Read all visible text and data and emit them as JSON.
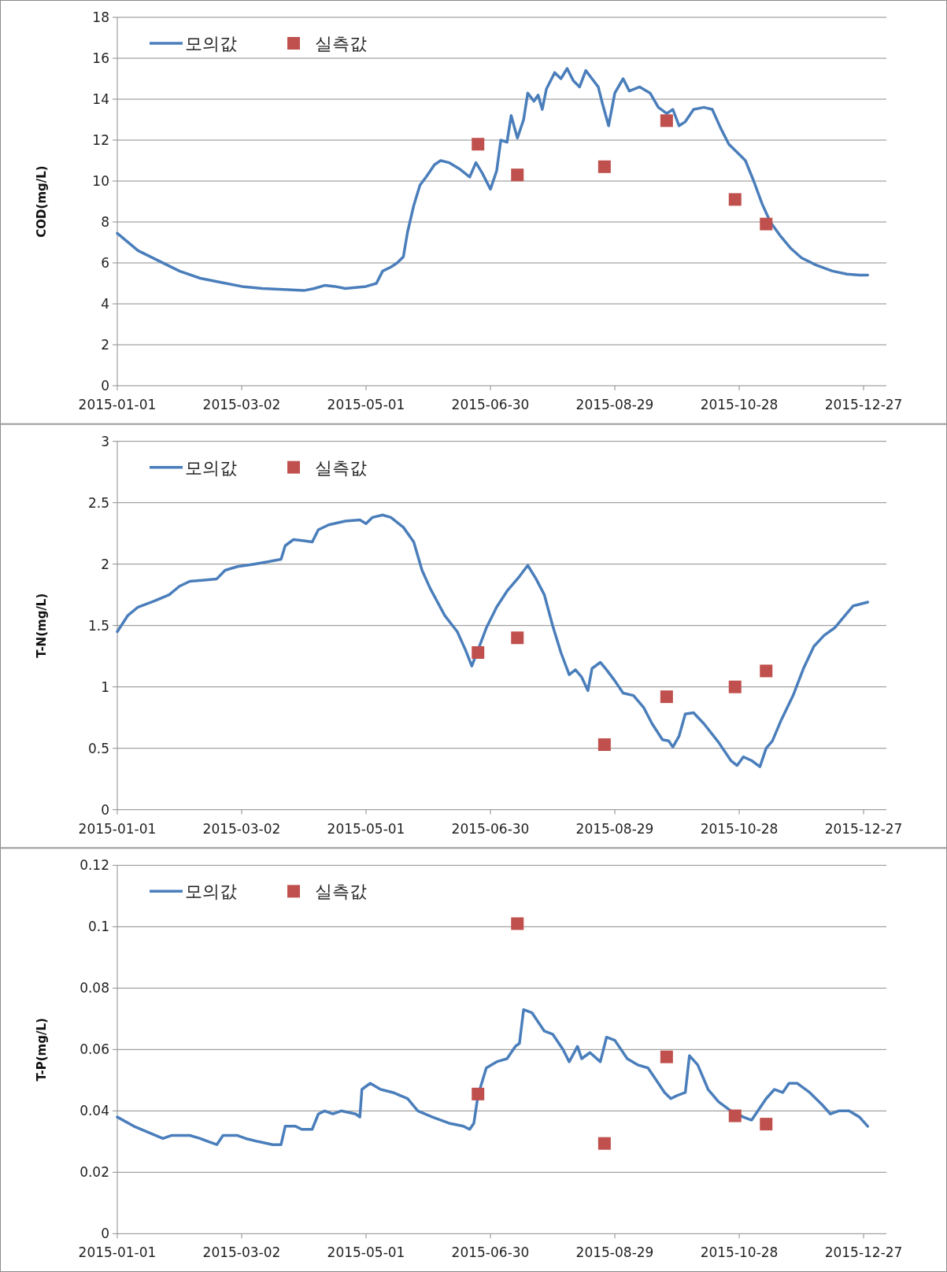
{
  "chart_data": [
    {
      "type": "line",
      "ylabel": "COD(mg/L)",
      "xlim": [
        "2015-01-01",
        "2016-01-07"
      ],
      "xticks": [
        "2015-01-01",
        "2015-03-02",
        "2015-05-01",
        "2015-06-30",
        "2015-08-29",
        "2015-10-28",
        "2015-12-27"
      ],
      "ylim": [
        0,
        18
      ],
      "yticks": [
        0,
        2,
        4,
        6,
        8,
        10,
        12,
        14,
        16,
        18
      ],
      "grid": "y",
      "legend": "top left",
      "series": [
        {
          "name": "모의값",
          "type": "line",
          "color": "#4a7ebb",
          "marker": "none",
          "x": [
            "2015-01-01",
            "2015-01-11",
            "2015-01-21",
            "2015-01-31",
            "2015-02-10",
            "2015-02-20",
            "2015-03-02",
            "2015-03-12",
            "2015-03-22",
            "2015-04-01",
            "2015-04-06",
            "2015-04-11",
            "2015-04-16",
            "2015-04-21",
            "2015-04-26",
            "2015-05-01",
            "2015-05-06",
            "2015-05-09",
            "2015-05-13",
            "2015-05-16",
            "2015-05-19",
            "2015-05-21",
            "2015-05-24",
            "2015-05-27",
            "2015-05-30",
            "2015-06-03",
            "2015-06-06",
            "2015-06-10",
            "2015-06-15",
            "2015-06-20",
            "2015-06-23",
            "2015-06-26",
            "2015-06-30",
            "2015-07-03",
            "2015-07-05",
            "2015-07-08",
            "2015-07-10",
            "2015-07-13",
            "2015-07-16",
            "2015-07-18",
            "2015-07-21",
            "2015-07-23",
            "2015-07-25",
            "2015-07-27",
            "2015-07-31",
            "2015-08-03",
            "2015-08-06",
            "2015-08-09",
            "2015-08-12",
            "2015-08-15",
            "2015-08-18",
            "2015-08-21",
            "2015-08-23",
            "2015-08-26",
            "2015-08-29",
            "2015-09-02",
            "2015-09-05",
            "2015-09-10",
            "2015-09-15",
            "2015-09-19",
            "2015-09-23",
            "2015-09-26",
            "2015-09-29",
            "2015-10-02",
            "2015-10-06",
            "2015-10-11",
            "2015-10-15",
            "2015-10-19",
            "2015-10-23",
            "2015-10-27",
            "2015-10-31",
            "2015-11-04",
            "2015-11-08",
            "2015-11-12",
            "2015-11-17",
            "2015-11-22",
            "2015-11-27",
            "2015-12-04",
            "2015-12-12",
            "2015-12-19",
            "2015-12-25",
            "2015-12-29"
          ],
          "values": [
            7.45,
            6.6,
            6.1,
            5.6,
            5.25,
            5.05,
            4.85,
            4.75,
            4.7,
            4.65,
            4.75,
            4.9,
            4.85,
            4.75,
            4.8,
            4.85,
            5.0,
            5.6,
            5.8,
            6.0,
            6.3,
            7.5,
            8.8,
            9.8,
            10.2,
            10.8,
            11.0,
            10.9,
            10.6,
            10.2,
            10.9,
            10.4,
            9.6,
            10.5,
            12.0,
            11.9,
            13.2,
            12.1,
            13.0,
            14.3,
            13.9,
            14.2,
            13.5,
            14.5,
            15.3,
            15.0,
            15.5,
            14.9,
            14.6,
            15.4,
            15.0,
            14.6,
            13.8,
            12.7,
            14.3,
            15.0,
            14.4,
            14.6,
            14.3,
            13.6,
            13.3,
            13.5,
            12.7,
            12.9,
            13.5,
            13.6,
            13.5,
            12.6,
            11.8,
            11.4,
            11.0,
            10.0,
            8.9,
            8.0,
            7.3,
            6.7,
            6.25,
            5.9,
            5.6,
            5.45,
            5.4,
            5.4
          ]
        },
        {
          "name": "실측값",
          "type": "scatter",
          "color": "#c0504d",
          "marker": "square",
          "x": [
            "2015-06-24",
            "2015-07-13",
            "2015-08-24",
            "2015-09-23",
            "2015-10-26",
            "2015-11-10"
          ],
          "values": [
            11.8,
            10.3,
            10.7,
            12.95,
            9.1,
            7.9
          ]
        }
      ]
    },
    {
      "type": "line",
      "ylabel": "T-N(mg/L)",
      "xlim": [
        "2015-01-01",
        "2016-01-07"
      ],
      "xticks": [
        "2015-01-01",
        "2015-03-02",
        "2015-05-01",
        "2015-06-30",
        "2015-08-29",
        "2015-10-28",
        "2015-12-27"
      ],
      "ylim": [
        0,
        3
      ],
      "yticks": [
        0,
        0.5,
        1,
        1.5,
        2,
        2.5,
        3
      ],
      "grid": "y",
      "legend": "top left",
      "series": [
        {
          "name": "모의값",
          "type": "line",
          "color": "#4a7ebb",
          "marker": "none",
          "x": [
            "2015-01-01",
            "2015-01-06",
            "2015-01-11",
            "2015-01-19",
            "2015-01-26",
            "2015-01-31",
            "2015-02-05",
            "2015-02-12",
            "2015-02-18",
            "2015-02-22",
            "2015-02-28",
            "2015-03-08",
            "2015-03-15",
            "2015-03-21",
            "2015-03-23",
            "2015-03-27",
            "2015-04-01",
            "2015-04-05",
            "2015-04-08",
            "2015-04-13",
            "2015-04-21",
            "2015-04-28",
            "2015-05-01",
            "2015-05-04",
            "2015-05-09",
            "2015-05-13",
            "2015-05-19",
            "2015-05-24",
            "2015-05-28",
            "2015-06-01",
            "2015-06-08",
            "2015-06-14",
            "2015-06-18",
            "2015-06-21",
            "2015-06-24",
            "2015-06-28",
            "2015-07-03",
            "2015-07-08",
            "2015-07-11",
            "2015-07-14",
            "2015-07-18",
            "2015-07-22",
            "2015-07-26",
            "2015-07-30",
            "2015-08-03",
            "2015-08-07",
            "2015-08-10",
            "2015-08-13",
            "2015-08-16",
            "2015-08-18",
            "2015-08-22",
            "2015-08-25",
            "2015-08-29",
            "2015-09-02",
            "2015-09-07",
            "2015-09-12",
            "2015-09-16",
            "2015-09-21",
            "2015-09-24",
            "2015-09-26",
            "2015-09-29",
            "2015-10-02",
            "2015-10-06",
            "2015-10-11",
            "2015-10-18",
            "2015-10-24",
            "2015-10-27",
            "2015-10-30",
            "2015-11-03",
            "2015-11-07",
            "2015-11-10",
            "2015-11-13",
            "2015-11-17",
            "2015-11-23",
            "2015-11-28",
            "2015-12-03",
            "2015-12-08",
            "2015-12-13",
            "2015-12-18",
            "2015-12-22",
            "2015-12-29"
          ],
          "values": [
            1.45,
            1.58,
            1.65,
            1.7,
            1.75,
            1.82,
            1.86,
            1.87,
            1.88,
            1.95,
            1.98,
            2.0,
            2.02,
            2.04,
            2.15,
            2.2,
            2.19,
            2.18,
            2.28,
            2.32,
            2.35,
            2.36,
            2.33,
            2.38,
            2.4,
            2.38,
            2.3,
            2.18,
            1.95,
            1.8,
            1.58,
            1.45,
            1.3,
            1.17,
            1.3,
            1.48,
            1.65,
            1.78,
            1.84,
            1.9,
            1.99,
            1.88,
            1.75,
            1.5,
            1.28,
            1.1,
            1.14,
            1.08,
            0.97,
            1.15,
            1.2,
            1.14,
            1.05,
            0.95,
            0.93,
            0.83,
            0.7,
            0.57,
            0.56,
            0.51,
            0.6,
            0.78,
            0.79,
            0.7,
            0.55,
            0.4,
            0.36,
            0.43,
            0.4,
            0.35,
            0.5,
            0.56,
            0.72,
            0.93,
            1.15,
            1.33,
            1.42,
            1.48,
            1.58,
            1.66,
            1.69
          ]
        },
        {
          "name": "실측값",
          "type": "scatter",
          "color": "#c0504d",
          "marker": "square",
          "x": [
            "2015-06-24",
            "2015-07-13",
            "2015-08-24",
            "2015-09-23",
            "2015-10-26",
            "2015-11-10"
          ],
          "values": [
            1.28,
            1.4,
            0.53,
            0.92,
            1.0,
            1.13
          ]
        }
      ]
    },
    {
      "type": "line",
      "ylabel": "T-P(mg/L)",
      "xlim": [
        "2015-01-01",
        "2016-01-07"
      ],
      "xticks": [
        "2015-01-01",
        "2015-03-02",
        "2015-05-01",
        "2015-06-30",
        "2015-08-29",
        "2015-10-28",
        "2015-12-27"
      ],
      "ylim": [
        0,
        0.12
      ],
      "yticks": [
        0,
        0.02,
        0.04,
        0.06,
        0.08,
        0.1,
        0.12
      ],
      "grid": "y",
      "legend": "top left",
      "series": [
        {
          "name": "모의값",
          "type": "line",
          "color": "#4a7ebb",
          "marker": "none",
          "x": [
            "2015-01-01",
            "2015-01-09",
            "2015-01-16",
            "2015-01-23",
            "2015-01-27",
            "2015-02-05",
            "2015-02-10",
            "2015-02-14",
            "2015-02-18",
            "2015-02-21",
            "2015-02-28",
            "2015-03-04",
            "2015-03-10",
            "2015-03-17",
            "2015-03-21",
            "2015-03-23",
            "2015-03-28",
            "2015-03-31",
            "2015-04-05",
            "2015-04-08",
            "2015-04-11",
            "2015-04-15",
            "2015-04-19",
            "2015-04-26",
            "2015-04-28",
            "2015-04-29",
            "2015-05-03",
            "2015-05-08",
            "2015-05-14",
            "2015-05-21",
            "2015-05-26",
            "2015-06-02",
            "2015-06-10",
            "2015-06-17",
            "2015-06-20",
            "2015-06-22",
            "2015-06-24",
            "2015-06-28",
            "2015-07-03",
            "2015-07-08",
            "2015-07-12",
            "2015-07-14",
            "2015-07-16",
            "2015-07-20",
            "2015-07-26",
            "2015-07-30",
            "2015-08-04",
            "2015-08-07",
            "2015-08-11",
            "2015-08-13",
            "2015-08-17",
            "2015-08-22",
            "2015-08-25",
            "2015-08-29",
            "2015-09-04",
            "2015-09-09",
            "2015-09-14",
            "2015-09-18",
            "2015-09-22",
            "2015-09-25",
            "2015-09-28",
            "2015-10-02",
            "2015-10-04",
            "2015-10-08",
            "2015-10-13",
            "2015-10-18",
            "2015-10-24",
            "2015-10-30",
            "2015-11-03",
            "2015-11-06",
            "2015-11-10",
            "2015-11-14",
            "2015-11-18",
            "2015-11-21",
            "2015-11-25",
            "2015-12-01",
            "2015-12-07",
            "2015-12-11",
            "2015-12-15",
            "2015-12-20",
            "2015-12-25",
            "2015-12-29"
          ],
          "values": [
            0.038,
            0.035,
            0.033,
            0.031,
            0.032,
            0.032,
            0.031,
            0.03,
            0.029,
            0.032,
            0.032,
            0.031,
            0.03,
            0.029,
            0.029,
            0.035,
            0.035,
            0.034,
            0.034,
            0.039,
            0.04,
            0.039,
            0.04,
            0.039,
            0.038,
            0.047,
            0.049,
            0.047,
            0.046,
            0.044,
            0.04,
            0.038,
            0.036,
            0.035,
            0.034,
            0.036,
            0.045,
            0.054,
            0.056,
            0.057,
            0.061,
            0.062,
            0.073,
            0.072,
            0.066,
            0.065,
            0.06,
            0.056,
            0.061,
            0.057,
            0.059,
            0.056,
            0.064,
            0.063,
            0.057,
            0.055,
            0.054,
            0.05,
            0.046,
            0.044,
            0.045,
            0.046,
            0.058,
            0.055,
            0.047,
            0.043,
            0.04,
            0.038,
            0.037,
            0.04,
            0.044,
            0.047,
            0.046,
            0.049,
            0.049,
            0.046,
            0.042,
            0.039,
            0.04,
            0.04,
            0.038,
            0.035
          ]
        },
        {
          "name": "실측값",
          "type": "scatter",
          "color": "#c0504d",
          "marker": "square",
          "x": [
            "2015-06-24",
            "2015-07-13",
            "2015-08-24",
            "2015-09-23",
            "2015-10-26",
            "2015-11-10"
          ],
          "values": [
            0.0455,
            0.101,
            0.0294,
            0.0576,
            0.0384,
            0.0357
          ]
        }
      ]
    }
  ]
}
